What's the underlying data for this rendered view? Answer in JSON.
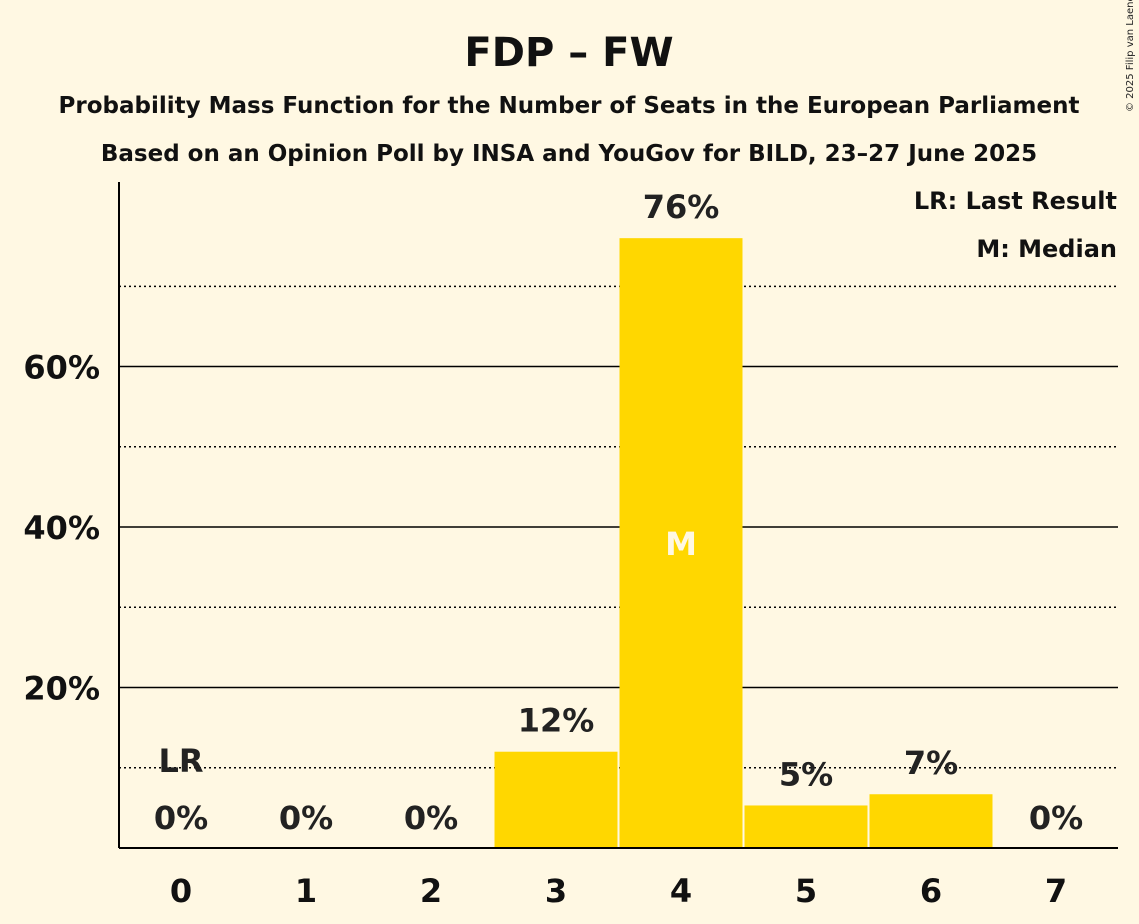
{
  "title": "FDP – FW",
  "subtitle1": "Probability Mass Function for the Number of Seats in the European Parliament",
  "subtitle2": "Based on an Opinion Poll by INSA and YouGov for BILD, 23–27 June 2025",
  "copyright": "© 2025 Filip van Laenen",
  "legend": {
    "last_result": "LR: Last Result",
    "median": "M: Median"
  },
  "colors": {
    "bar": "#FFD700",
    "background": "#FFF8E3",
    "axis": "#000000"
  },
  "chart_data": {
    "type": "bar",
    "categories": [
      "0",
      "1",
      "2",
      "3",
      "4",
      "5",
      "6",
      "7"
    ],
    "values": [
      0,
      0,
      0,
      12,
      76,
      5.3,
      6.7,
      0
    ],
    "value_labels": [
      "0%",
      "0%",
      "0%",
      "12%",
      "76%",
      "5%",
      "7%",
      "0%"
    ],
    "ylim": [
      0,
      83
    ],
    "yticks": [
      20,
      40,
      60
    ],
    "ytick_labels": [
      "20%",
      "40%",
      "60%"
    ],
    "minor_gridlines": [
      10,
      30,
      50,
      70
    ],
    "last_result_category": "0",
    "last_result_label": "LR",
    "median_category": "4",
    "median_label": "M",
    "grid": true,
    "legend_position": "top-right"
  }
}
